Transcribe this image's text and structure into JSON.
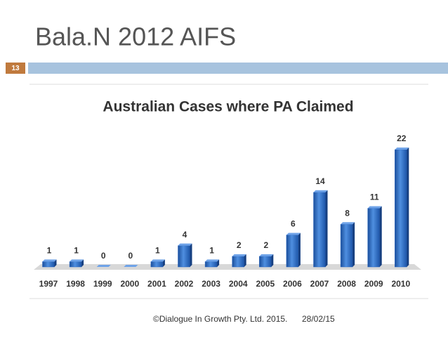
{
  "slide": {
    "title": "Bala.N 2012 AIFS",
    "number": "13",
    "footer": "©Dialogue In Growth Pty. Ltd. 2015.",
    "date": "28/02/15"
  },
  "chart_data": {
    "type": "bar",
    "title": "Australian Cases where PA Claimed",
    "categories": [
      "1997",
      "1998",
      "1999",
      "2000",
      "2001",
      "2002",
      "2003",
      "2004",
      "2005",
      "2006",
      "2007",
      "2008",
      "2009",
      "2010"
    ],
    "values": [
      1,
      1,
      0,
      0,
      1,
      4,
      1,
      2,
      2,
      6,
      14,
      8,
      11,
      22
    ],
    "color": "#2a66c0"
  }
}
